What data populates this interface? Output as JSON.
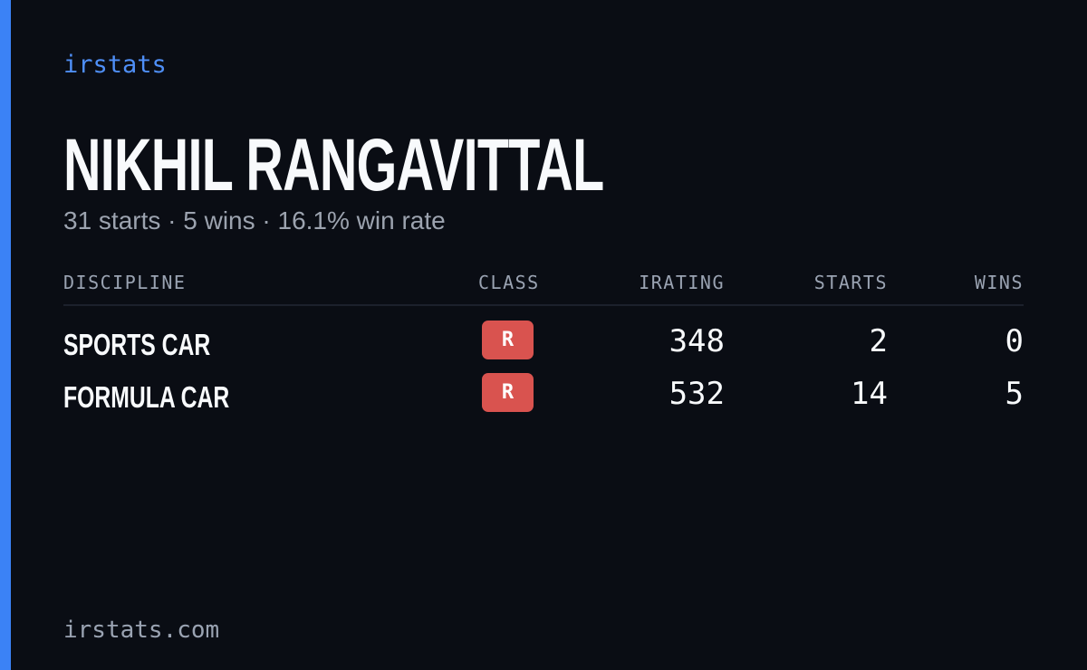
{
  "brand": "irstats",
  "profile": {
    "name": "NIKHIL RANGAVITTAL",
    "summary": "31 starts · 5 wins · 16.1% win rate"
  },
  "table": {
    "columns": [
      "DISCIPLINE",
      "CLASS",
      "IRATING",
      "STARTS",
      "WINS"
    ],
    "rows": [
      [
        "SPORTS CAR",
        "R",
        348,
        2,
        0
      ],
      [
        "FORMULA CAR",
        "R",
        532,
        14,
        5
      ]
    ]
  },
  "footer": "irstats.com"
}
